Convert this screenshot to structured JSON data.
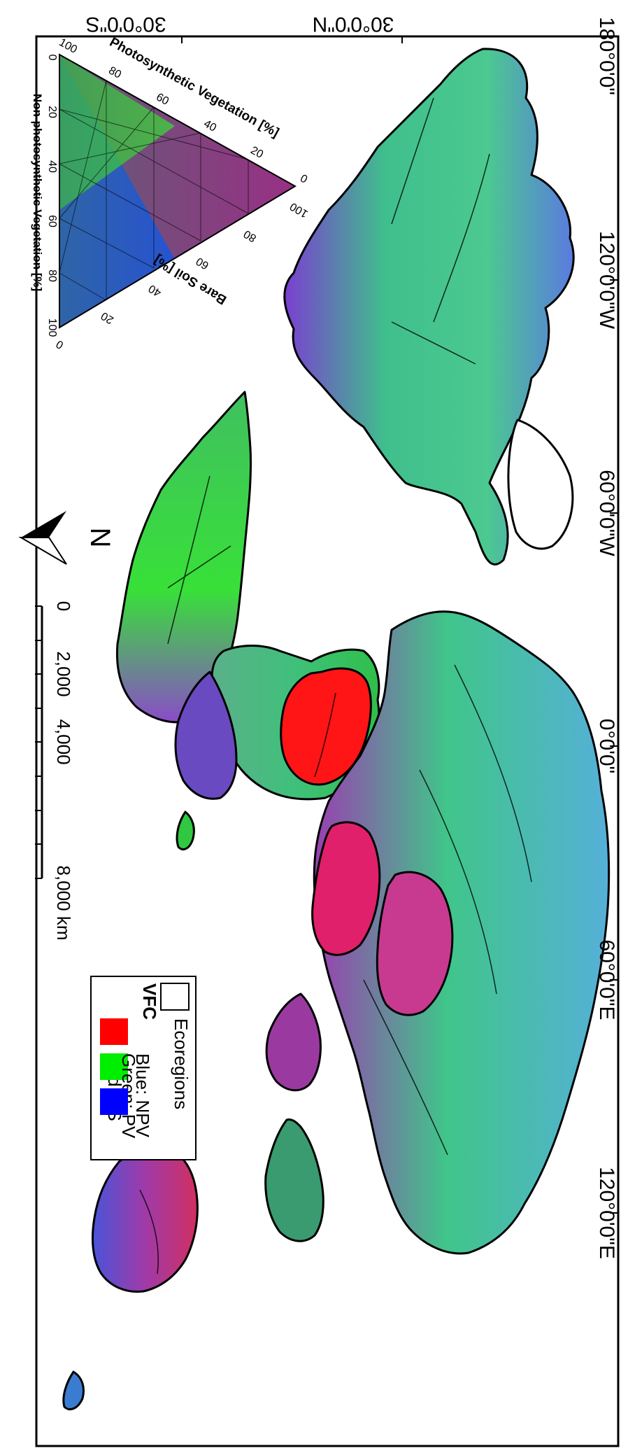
{
  "map": {
    "graticule_labels": {
      "lat": [
        "30°0'0\"S",
        "30°0'0\"N"
      ],
      "lon": [
        "180°0'0\"",
        "120°0'0\"W",
        "60°0'0\"W",
        "0°0'0\"",
        "60°0'0\"E",
        "120°0'0\"E"
      ]
    },
    "north_arrow": {
      "label": "N"
    },
    "scale_bar": {
      "labels": [
        "0",
        "2,000",
        "4,000",
        "8,000 km"
      ]
    },
    "legend": {
      "outline_label": "Ecoregions",
      "section_title": "VFC",
      "items": [
        {
          "label": "Red: BS",
          "color": "#ff0000"
        },
        {
          "label": "Green: PV",
          "color": "#00ee00"
        },
        {
          "label": "Blue: NPV",
          "color": "#0000ff"
        }
      ]
    },
    "ternary": {
      "pv_title": "Photosynthetic Vegetation [%]",
      "npv_title": "Non-photosynthetic Vegetation [%]",
      "bs_title": "Bare Soil [%]",
      "pv_ticks": [
        "100",
        "80",
        "60",
        "40",
        "20",
        "0"
      ],
      "npv_ticks": [
        "0",
        "20",
        "40",
        "60",
        "80",
        "100"
      ],
      "bs_ticks": [
        "0",
        "20",
        "40",
        "60",
        "80",
        "100"
      ]
    },
    "colors": {
      "ocean": "#ffffff",
      "border": "#000000",
      "bare_soil": "#ff0000",
      "pv": "#22dd22",
      "npv": "#1a2eff"
    }
  }
}
